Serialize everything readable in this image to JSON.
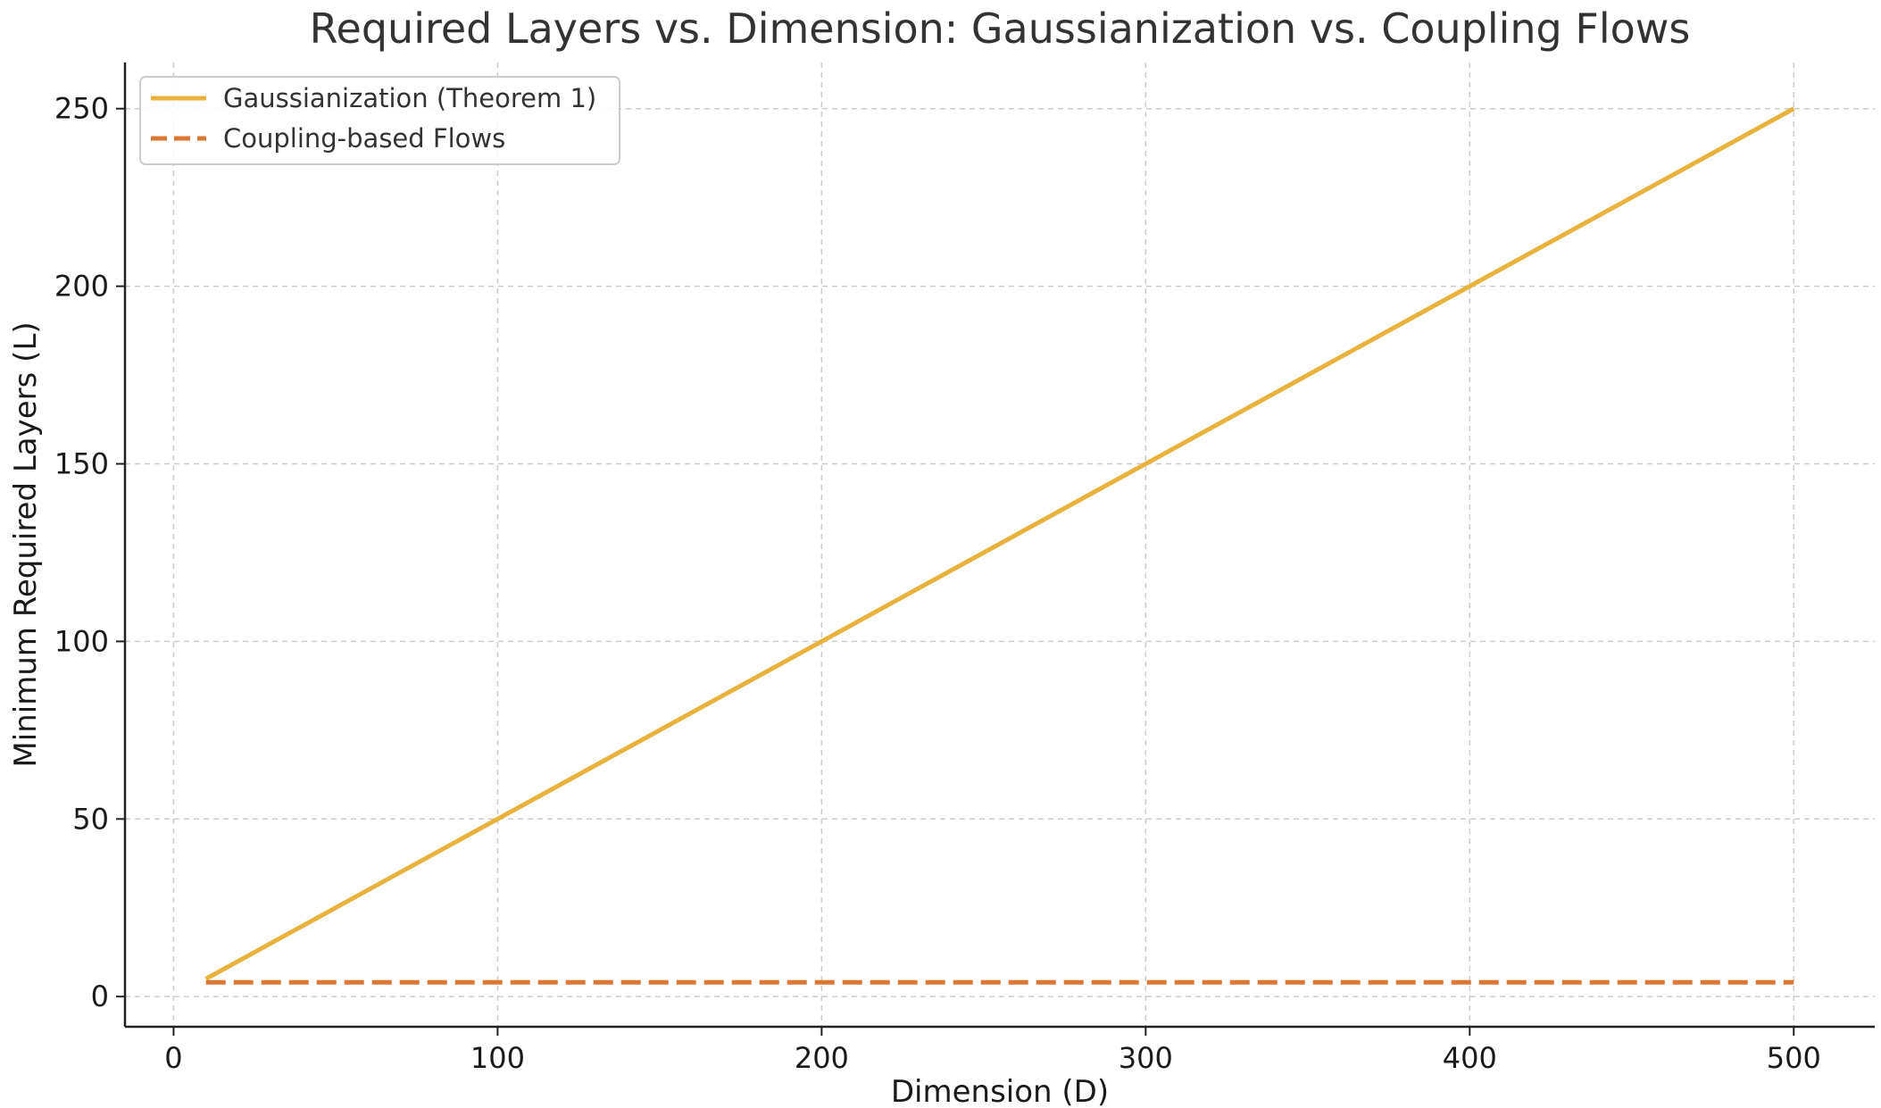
{
  "chart_data": {
    "type": "line",
    "title": "Required Layers vs. Dimension: Gaussianization vs. Coupling Flows",
    "xlabel": "Dimension (D)",
    "ylabel": "Minimum Required Layers (L)",
    "xlim": [
      -15,
      525
    ],
    "ylim": [
      -8.5,
      263
    ],
    "xticks": [
      0,
      100,
      200,
      300,
      400,
      500
    ],
    "yticks": [
      0,
      50,
      100,
      150,
      200,
      250
    ],
    "grid": true,
    "legend_position": "top-left",
    "series": [
      {
        "name": "Gaussianization (Theorem 1)",
        "color": "#E8B23D",
        "style": "solid",
        "x": [
          10,
          500
        ],
        "y": [
          5,
          250
        ]
      },
      {
        "name": "Coupling-based Flows",
        "color": "#DC7633",
        "style": "dashed",
        "x": [
          10,
          500
        ],
        "y": [
          4,
          4
        ]
      }
    ]
  }
}
